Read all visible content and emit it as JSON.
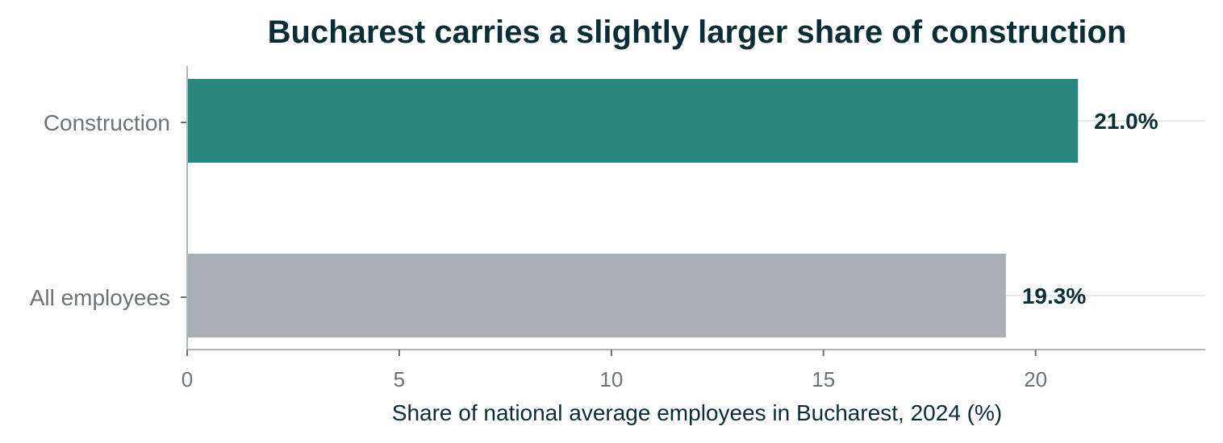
{
  "chart_data": {
    "type": "bar",
    "orientation": "horizontal",
    "title": "Bucharest carries a slightly larger share of construction",
    "xlabel": "Share of national average employees in Bucharest, 2024 (%)",
    "ylabel": "",
    "categories": [
      "Construction",
      "All employees"
    ],
    "values": [
      21.0,
      19.3
    ],
    "value_labels": [
      "21.0%",
      "19.3%"
    ],
    "bar_colors": [
      "#29867e",
      "#a8b0b3"
    ],
    "xlim": [
      0,
      24
    ],
    "xticks": [
      0,
      5,
      10,
      15,
      20
    ],
    "xtick_labels": [
      "0",
      "5",
      "10",
      "15",
      "20"
    ],
    "grid": "horizontal guide lines at each category",
    "legend": "none"
  },
  "colors": {
    "title": "#0b2e36",
    "axis": "#aeb8bc",
    "grid": "#e2ebea",
    "tick_text": "#6b7378",
    "value_text": "#0b2e36"
  }
}
